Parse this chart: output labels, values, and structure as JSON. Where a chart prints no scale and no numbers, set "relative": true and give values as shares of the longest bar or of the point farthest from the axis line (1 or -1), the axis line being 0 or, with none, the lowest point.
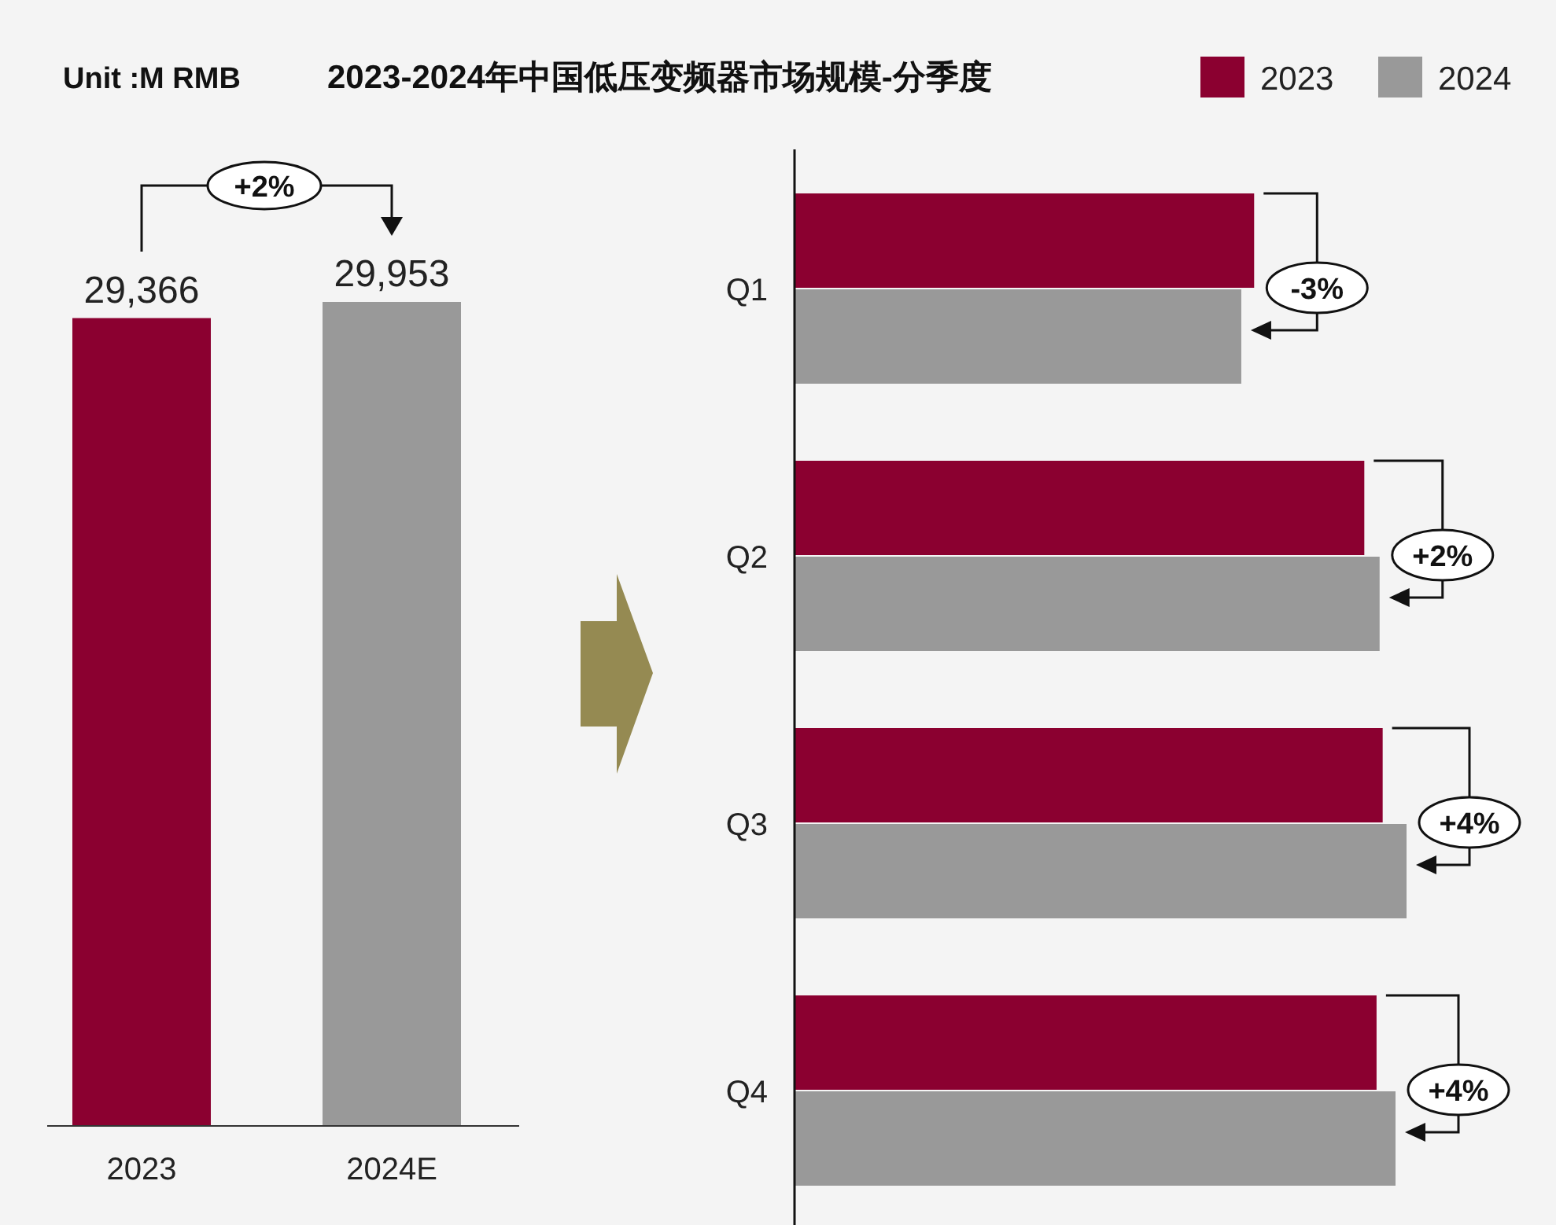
{
  "chart_data": [
    {
      "type": "bar",
      "title": "2023-2024年中国低压变频器市场规模-分季度",
      "categories": [
        "2023",
        "2024E"
      ],
      "values": [
        29366,
        29953
      ],
      "colors": [
        "#8b0030",
        "#999999"
      ],
      "value_labels": [
        "29,366",
        "29,953"
      ],
      "annotations": [
        "Unit :M RMB",
        "+2%"
      ]
    },
    {
      "type": "bar",
      "orientation": "horizontal",
      "relative": true,
      "categories": [
        "Q1",
        "Q2",
        "Q3",
        "Q4"
      ],
      "legend": "top right",
      "series": [
        {
          "name": "2023",
          "color": "#8b0030",
          "values": [
            0.751,
            0.931,
            0.961,
            0.951
          ]
        },
        {
          "name": "2024",
          "color": "#999999",
          "values": [
            0.73,
            0.956,
            1.0,
            0.982
          ]
        }
      ],
      "annotations": [
        "-3%",
        "+2%",
        "+4%",
        "+4%"
      ]
    }
  ]
}
